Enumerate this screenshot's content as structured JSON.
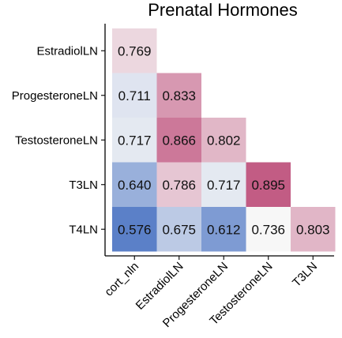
{
  "chart_data": {
    "type": "heatmap",
    "title": "Prenatal Hormones",
    "layout": "lower-triangle",
    "rows": [
      "EstradiolLN",
      "ProgesteroneLN",
      "TestosteroneLN",
      "T3LN",
      "T4LN"
    ],
    "columns": [
      "cort_nln",
      "EstradiolLN",
      "ProgesteroneLN",
      "TestosteroneLN",
      "T3LN"
    ],
    "values": [
      [
        0.769,
        null,
        null,
        null,
        null
      ],
      [
        0.711,
        0.833,
        null,
        null,
        null
      ],
      [
        0.717,
        0.866,
        0.802,
        null,
        null
      ],
      [
        0.64,
        0.786,
        0.717,
        0.895,
        null
      ],
      [
        0.576,
        0.675,
        0.612,
        0.736,
        0.803
      ]
    ],
    "value_format": "0.000",
    "colormap": {
      "type": "diverging",
      "center": 0.736,
      "low": 0.576,
      "high": 0.895,
      "low_color": "#5b80c8",
      "mid_color": "#f7f7f7",
      "high_color": "#c25c84"
    },
    "grid": false,
    "legend": "none"
  }
}
